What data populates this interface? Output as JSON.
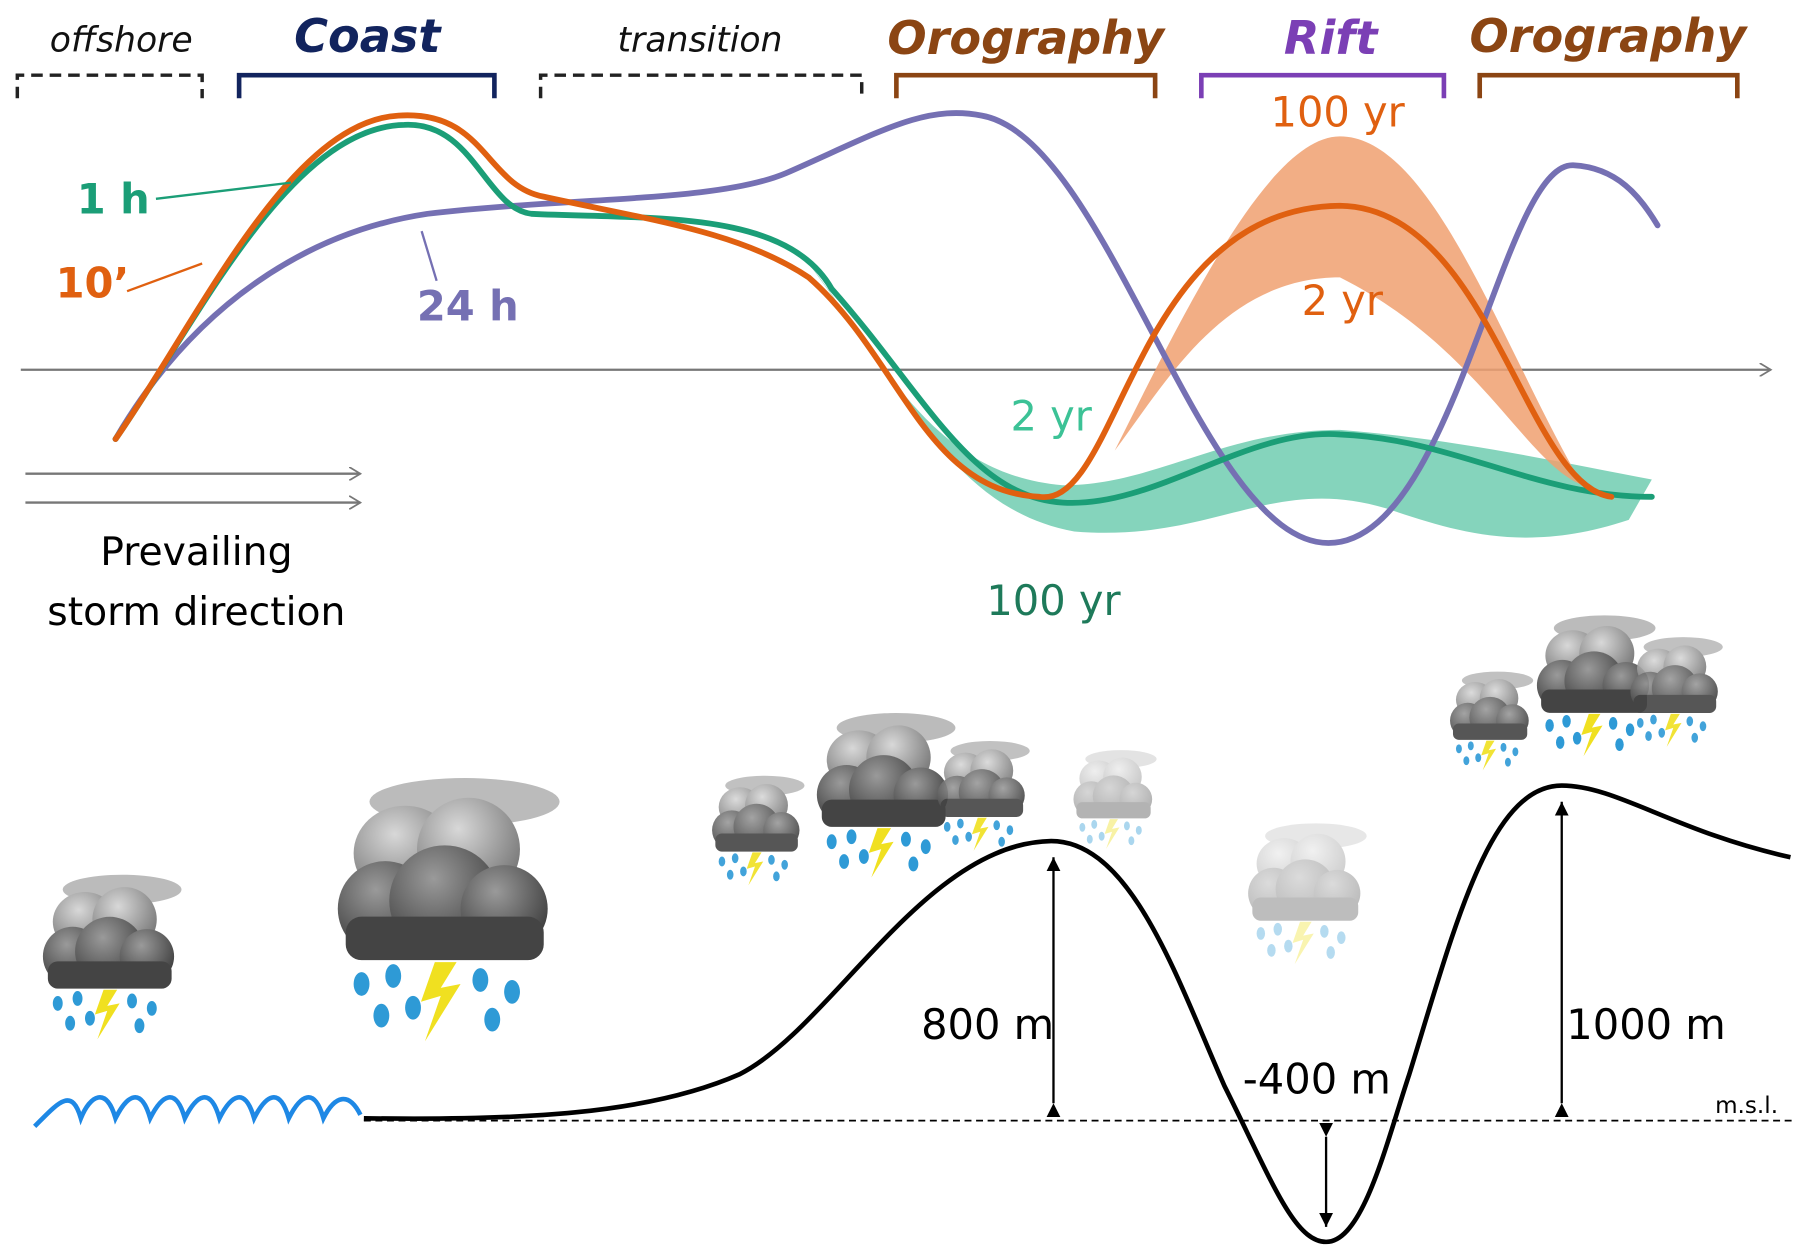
{
  "regions": [
    "offshore",
    "Coast",
    "transition",
    "Orography",
    "Rift",
    "Orography"
  ],
  "duration_labels": [
    "1 h",
    "10’",
    "24 h"
  ],
  "return_period_labels": [
    "100 yr",
    "2 yr",
    "2 yr",
    "100 yr"
  ],
  "storm_direction": [
    "Prevailing",
    "storm direction"
  ],
  "elevations": [
    "800 m",
    "-400 m",
    "1000 m"
  ],
  "msl": "m.s.l."
}
